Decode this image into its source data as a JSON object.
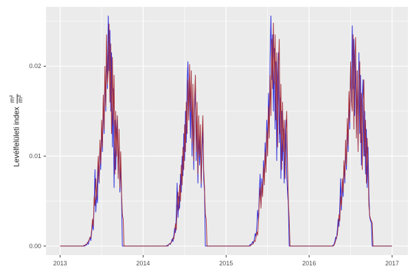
{
  "figure": {
    "background": "#FFFFFF",
    "panel_background": "#EBEBEB",
    "grid_color": "#FFFFFF",
    "axis_text_color": "#4D4D4D",
    "axis_title_color": "#1A1A1A",
    "tick_mark_color": "#333333"
  },
  "ylabel": {
    "text": "Levélfelületi index",
    "unit_numerator": "m²",
    "unit_denominator": "m²"
  },
  "chart_data": {
    "type": "line",
    "title": "",
    "xlabel": "",
    "ylabel": "Levélfelületi index m²/m²",
    "legend": "none",
    "grid": true,
    "xlim": [
      2012.83,
      2017.19
    ],
    "ylim": [
      -0.001,
      0.0266
    ],
    "x_ticks": [
      "2013",
      "2014",
      "2015",
      "2016",
      "2017"
    ],
    "x_tick_values": [
      2013,
      2014,
      2015,
      2016,
      2017
    ],
    "x_minor_values": [
      2013.5,
      2014.5,
      2015.5,
      2016.5
    ],
    "y_ticks": [
      "0.00",
      "0.01",
      "0.02"
    ],
    "y_tick_values": [
      0,
      0.01,
      0.02
    ],
    "y_minor_values": [
      0.005,
      0.015,
      0.025
    ],
    "baseline_anchors": [
      2013.0,
      2017.0
    ],
    "series": [
      {
        "name": "series-blue",
        "color": "#2B2BDF",
        "seasons": [
          {
            "year": 2013,
            "t0": 0.28,
            "dt": 0.01,
            "values": [
              0,
              0.0001,
              0,
              0.0002,
              0.0001,
              0.0004,
              0.0002,
              0.0006,
              0.001,
              0.0006,
              0.0015,
              0.0025,
              0.0018,
              0.0045,
              0.0085,
              0.0038,
              0.006,
              0.0048,
              0.009,
              0.007,
              0.011,
              0.0085,
              0.013,
              0.0105,
              0.016,
              0.0125,
              0.019,
              0.015,
              0.022,
              0.0175,
              0.0256,
              0.0195,
              0.024,
              0.015,
              0.0215,
              0.011,
              0.0175,
              0.0065,
              0.014,
              0.0085,
              0.0125,
              0.0145,
              0.008,
              0.012,
              0.006,
              0.009,
              0.0055,
              0,
              0,
              0,
              0,
              0,
              0
            ]
          },
          {
            "year": 2014,
            "t0": 0.28,
            "dt": 0.01,
            "values": [
              0,
              0.0001,
              0,
              0.0002,
              0.0003,
              0.0002,
              0.0005,
              0.0008,
              0.0005,
              0.0012,
              0.002,
              0.0015,
              0.0035,
              0.007,
              0.0032,
              0.0055,
              0.0042,
              0.008,
              0.006,
              0.01,
              0.0078,
              0.0125,
              0.0095,
              0.015,
              0.0115,
              0.018,
              0.0205,
              0.0145,
              0.019,
              0.012,
              0.0175,
              0.01,
              0.016,
              0.0085,
              0.015,
              0.0175,
              0.0095,
              0.0145,
              0.007,
              0.013,
              0.009,
              0.012,
              0.0065,
              0.0105,
              0.013,
              0.0075,
              0.006,
              0,
              0,
              0,
              0,
              0,
              0
            ]
          },
          {
            "year": 2015,
            "t0": 0.28,
            "dt": 0.01,
            "values": [
              0,
              0.0002,
              0.0001,
              0.0003,
              0.0005,
              0.0003,
              0.0008,
              0.0014,
              0.001,
              0.0022,
              0.004,
              0.0028,
              0.006,
              0.008,
              0.0045,
              0.0075,
              0.0058,
              0.0095,
              0.0072,
              0.0115,
              0.009,
              0.014,
              0.011,
              0.017,
              0.0135,
              0.021,
              0.0256,
              0.0185,
              0.0235,
              0.015,
              0.022,
              0.013,
              0.0205,
              0.0095,
              0.018,
              0.0215,
              0.0115,
              0.0165,
              0.0075,
              0.015,
              0.0095,
              0.013,
              0.007,
              0.0115,
              0.014,
              0.008,
              0.006,
              0.0045,
              0,
              0,
              0,
              0,
              0
            ]
          },
          {
            "year": 2016,
            "t0": 0.28,
            "dt": 0.01,
            "values": [
              0,
              0.0001,
              0.0002,
              0.0005,
              0.001,
              0.0008,
              0.0018,
              0.003,
              0.0022,
              0.0045,
              0.0075,
              0.004,
              0.0068,
              0.0055,
              0.009,
              0.007,
              0.011,
              0.0085,
              0.0135,
              0.0105,
              0.0165,
              0.013,
              0.02,
              0.016,
              0.0245,
              0.0175,
              0.023,
              0.0145,
              0.0215,
              0.0125,
              0.0195,
              0.011,
              0.0215,
              0.0125,
              0.019,
              0.009,
              0.0165,
              0.0185,
              0.01,
              0.015,
              0.008,
              0.013,
              0.0065,
              0.011,
              0.006,
              0.0032,
              0.0028,
              0.0026,
              0,
              0,
              0,
              0,
              0
            ]
          }
        ]
      },
      {
        "name": "series-red",
        "color": "#A5303C",
        "seasons": [
          {
            "year": 2013,
            "t0": 0.28,
            "dt": 0.01,
            "values": [
              0,
              0,
              0.0001,
              0.0002,
              0.0002,
              0.0004,
              0.0005,
              0.0007,
              0.001,
              0.0009,
              0.0018,
              0.003,
              0.0022,
              0.0055,
              0.0045,
              0.0075,
              0.0052,
              0.008,
              0.01,
              0.0072,
              0.0118,
              0.0092,
              0.014,
              0.011,
              0.0168,
              0.013,
              0.02,
              0.0155,
              0.0235,
              0.018,
              0.0195,
              0.0247,
              0.016,
              0.0225,
              0.0125,
              0.021,
              0.0135,
              0.019,
              0.008,
              0.015,
              0.01,
              0.0145,
              0.0075,
              0.013,
              0.0065,
              0.0105,
              0.006,
              0.0035,
              0.003,
              0,
              0,
              0,
              0
            ]
          },
          {
            "year": 2014,
            "t0": 0.28,
            "dt": 0.01,
            "values": [
              0,
              0,
              0.0001,
              0.0002,
              0.0002,
              0.0003,
              0.0004,
              0.0006,
              0.0009,
              0.0008,
              0.0015,
              0.0025,
              0.0018,
              0.0045,
              0.006,
              0.004,
              0.0068,
              0.005,
              0.009,
              0.0068,
              0.011,
              0.0085,
              0.0135,
              0.0105,
              0.016,
              0.0125,
              0.0185,
              0.014,
              0.0202,
              0.015,
              0.0195,
              0.0115,
              0.018,
              0.0095,
              0.0165,
              0.019,
              0.0105,
              0.016,
              0.008,
              0.0145,
              0.01,
              0.0135,
              0.007,
              0.012,
              0.0145,
              0.0085,
              0.0065,
              0.0035,
              0.003,
              0,
              0,
              0,
              0
            ]
          },
          {
            "year": 2015,
            "t0": 0.28,
            "dt": 0.01,
            "values": [
              0,
              0,
              0.0001,
              0.0002,
              0.0002,
              0.0004,
              0.0006,
              0.0005,
              0.001,
              0.0016,
              0.0012,
              0.0028,
              0.005,
              0.0065,
              0.0042,
              0.007,
              0.0055,
              0.0088,
              0.0068,
              0.0105,
              0.0082,
              0.0128,
              0.01,
              0.0155,
              0.012,
              0.019,
              0.0145,
              0.023,
              0.0175,
              0.0248,
              0.018,
              0.0235,
              0.014,
              0.0215,
              0.011,
              0.0195,
              0.023,
              0.0125,
              0.018,
              0.0085,
              0.016,
              0.0105,
              0.014,
              0.0075,
              0.0125,
              0.015,
              0.009,
              0.005,
              0.003,
              0,
              0,
              0,
              0
            ]
          },
          {
            "year": 2016,
            "t0": 0.28,
            "dt": 0.01,
            "values": [
              0,
              0,
              0.0001,
              0.0003,
              0.0006,
              0.001,
              0.0012,
              0.0022,
              0.0035,
              0.0028,
              0.0055,
              0.0045,
              0.0075,
              0.006,
              0.0095,
              0.0075,
              0.0118,
              0.009,
              0.0142,
              0.0112,
              0.0172,
              0.0138,
              0.0205,
              0.016,
              0.015,
              0.0235,
              0.013,
              0.021,
              0.0232,
              0.012,
              0.0195,
              0.0105,
              0.018,
              0.0205,
              0.0115,
              0.017,
              0.0085,
              0.0155,
              0.0185,
              0.01,
              0.014,
              0.007,
              0.012,
              0.009,
              0.0045,
              0.0034,
              0.003,
              0.0028,
              0.0026,
              0,
              0,
              0,
              0
            ]
          }
        ]
      }
    ]
  }
}
